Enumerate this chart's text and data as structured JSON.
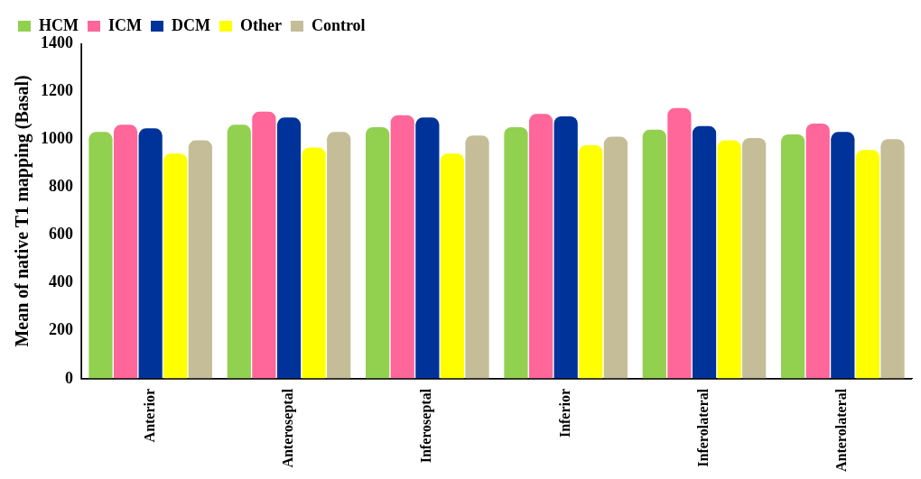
{
  "chart_data": {
    "type": "bar",
    "ylabel": "Mean of native T1 mapping (Basal)",
    "categories": [
      "Anterior",
      "Anteroseptal",
      "Inferoseptal",
      "Inferior",
      "Inferolateral",
      "Anterolateral"
    ],
    "series": [
      {
        "name": "HCM",
        "color": "#92d050",
        "values": [
          1030,
          1060,
          1050,
          1050,
          1040,
          1020
        ]
      },
      {
        "name": "ICM",
        "color": "#ff6699",
        "values": [
          1060,
          1115,
          1100,
          1105,
          1130,
          1065
        ]
      },
      {
        "name": "DCM",
        "color": "#003399",
        "values": [
          1045,
          1090,
          1090,
          1095,
          1055,
          1030
        ]
      },
      {
        "name": "Other",
        "color": "#ffff00",
        "values": [
          940,
          965,
          940,
          975,
          995,
          955
        ]
      },
      {
        "name": "Control",
        "color": "#c4bd97",
        "values": [
          995,
          1030,
          1015,
          1010,
          1005,
          1000
        ]
      }
    ],
    "ylim": [
      0,
      1400
    ],
    "yticks": [
      0,
      200,
      400,
      600,
      800,
      1000,
      1200,
      1400
    ],
    "grid": false,
    "legend": "top left"
  }
}
